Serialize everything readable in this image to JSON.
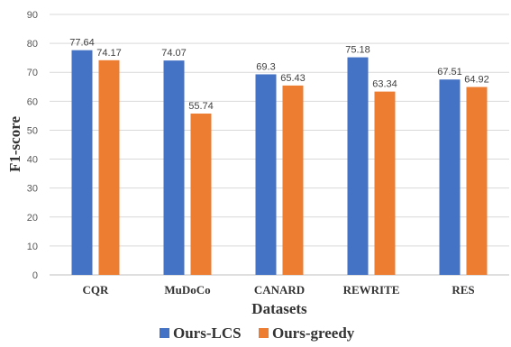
{
  "chart_data": {
    "type": "bar",
    "categories": [
      "CQR",
      "MuDoCo",
      "CANARD",
      "REWRITE",
      "RES"
    ],
    "series": [
      {
        "name": "Ours-LCS",
        "values": [
          77.64,
          74.07,
          69.3,
          75.18,
          67.51
        ],
        "labels": [
          "77.64",
          "74.07",
          "69.3",
          "75.18",
          "67.51"
        ],
        "color": "#4472C4"
      },
      {
        "name": "Ours-greedy",
        "values": [
          74.17,
          55.74,
          65.43,
          63.34,
          64.92
        ],
        "labels": [
          "74.17",
          "55.74",
          "65.43",
          "63.34",
          "64.92"
        ],
        "color": "#ED7D31"
      }
    ],
    "title": "",
    "xlabel": "Datasets",
    "ylabel": "F1-score",
    "ylim": [
      0,
      90
    ],
    "yticks": [
      "0",
      "10",
      "20",
      "30",
      "40",
      "50",
      "60",
      "70",
      "80",
      "90"
    ],
    "grid": true,
    "legend": "bottom-center"
  }
}
